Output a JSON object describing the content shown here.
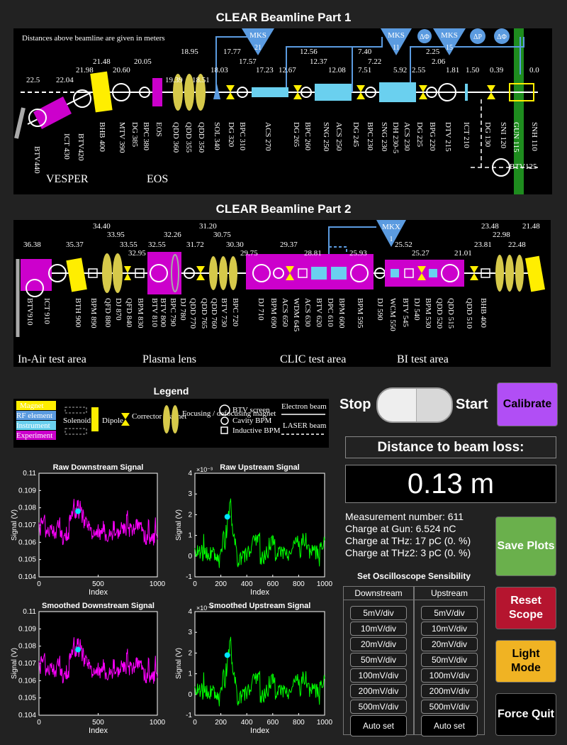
{
  "beamline1": {
    "title": "CLEAR Beamline Part 1",
    "note": "Distances above beamline are given in meters",
    "distances": [
      "22.5",
      "22.04",
      "21.98",
      "21.48",
      "20.60",
      "20.05",
      "19.39",
      "18.95",
      "18.51",
      "18.03",
      "17.77",
      "17.57",
      "17.23",
      "12.67",
      "12.56",
      "12.37",
      "12.08",
      "7.51",
      "7.40",
      "7.22",
      "5.92",
      "2.55",
      "2.25",
      "2.06",
      "1.81",
      "1.50",
      "0.39",
      "0.0"
    ],
    "mks_labels": [
      "MKS",
      "21",
      "MKS",
      "11",
      "MKS",
      "15"
    ],
    "phase_labels": [
      "ΔΦ",
      "ΔP",
      "ΔΦ"
    ],
    "elements": [
      "BTV440",
      "ICT 430",
      "BTV420",
      "BHB 400",
      "MTV 390",
      "DG 385",
      "BPC 380",
      "EOS",
      "QDD 360",
      "QDD 355",
      "QDD 350",
      "SOL 340",
      "DG 320",
      "BPC 310",
      "ACS 270",
      "DG 265",
      "BPC 260",
      "SNG 250",
      "ACS 250",
      "DG 245",
      "BPC 230",
      "SNG 230",
      "DH 230-5",
      "ACS 230",
      "DG 225",
      "BPG 220",
      "DTV 215",
      "ICT 210",
      "DG 130",
      "SNI 120",
      "GUN 115",
      "SNH 110",
      "BTV125"
    ],
    "areas": [
      "VESPER",
      "EOS"
    ]
  },
  "beamline2": {
    "title": "CLEAR Beamline Part 2",
    "distances": [
      "36.38",
      "35.37",
      "34.40",
      "33.95",
      "33.55",
      "32.95",
      "32.55",
      "32.26",
      "31.72",
      "31.20",
      "30.75",
      "30.30",
      "29.75",
      "29.37",
      "28.81",
      "25.93",
      "25.52",
      "25.27",
      "23.48",
      "22.98",
      "22.48",
      "21.48",
      "21.01",
      "23.81"
    ],
    "mks_labels": [
      "MKX",
      "1"
    ],
    "elements": [
      "BTV910",
      "ICT 910",
      "BTH 900",
      "BPM 890",
      "QFD 880",
      "DJ 870",
      "QFD 840",
      "BPM 830",
      "BTV 810",
      "BTV 800",
      "BPC 790",
      "DJ 780",
      "QDD 770",
      "QDD 765",
      "QDD 760",
      "BTV 730",
      "BPC 720",
      "DJ 710",
      "BPM 690",
      "ACS 650",
      "WDM 645",
      "ACS 630",
      "BTV 620",
      "DPC 610",
      "BPM 600",
      "BPM 595",
      "DJ 590",
      "WCM 550",
      "BTV 545",
      "DJ 540",
      "BPM 530",
      "QDD 520",
      "QDD 515",
      "QDD 510",
      "BHB 400"
    ],
    "areas": [
      "In-Air test area",
      "Plasma lens",
      "CLIC test area",
      "BI test area"
    ]
  },
  "legend": {
    "title": "Legend",
    "color_keys": [
      "Magnet",
      "RF element",
      "Instrument",
      "Experiment"
    ],
    "items": [
      "Solenoid",
      "Dipole",
      "Corrector magnet",
      "Focusing / defocusing magnet",
      "BTV screen",
      "Cavity BPM",
      "Inductive BPM",
      "Electron beam",
      "LASER beam"
    ]
  },
  "controls": {
    "stop_label": "Stop",
    "start_label": "Start",
    "toggle_state": "off",
    "calibrate_label": "Calibrate",
    "distance_title": "Distance to beam loss:",
    "distance_value": "0.13 m",
    "save_label": "Save Plots",
    "reset_label": "Reset Scope",
    "light_label": "Light Mode",
    "quit_label": "Force Quit"
  },
  "info": {
    "measurement": "Measurement number: 611",
    "charge_gun": "Charge at Gun: 6.524 nC",
    "charge_thz": "Charge at THz: 17 pC (0. %)",
    "charge_thz2": "Charge at THz2: 3 pC (0. %)"
  },
  "sensitivity": {
    "title": "Set Oscilloscope Sensibility",
    "downstream_label": "Downstream",
    "upstream_label": "Upstream",
    "options": [
      "5mV/div",
      "10mV/div",
      "20mV/div",
      "50mV/div",
      "100mV/div",
      "200mV/div",
      "500mV/div"
    ],
    "auto_label": "Auto set"
  },
  "chart_data": [
    {
      "type": "line",
      "title": "Raw Downstream Signal",
      "xlabel": "Index",
      "ylabel": "Signal (V)",
      "xlim": [
        0,
        1000
      ],
      "ylim": [
        0.104,
        0.11
      ],
      "xticks": [
        "0",
        "500",
        "1000"
      ],
      "yticks": [
        "0.104",
        "0.105",
        "0.106",
        "0.107",
        "0.108",
        "0.109",
        "0.11"
      ],
      "color": "#ff00ff",
      "marker": {
        "x": 330,
        "y": 0.1078
      },
      "series_profile": {
        "base": 0.1068,
        "spread": 0.0009,
        "peak_x": 330,
        "peak": 0.1093
      }
    },
    {
      "type": "line",
      "title": "Raw Upstream Signal",
      "xlabel": "Index",
      "ylabel": "Signal (V)",
      "exponent": "×10⁻³",
      "xlim": [
        0,
        1000
      ],
      "ylim": [
        -1,
        4
      ],
      "xticks": [
        "0",
        "200",
        "400",
        "600",
        "800",
        "1000"
      ],
      "yticks": [
        "-1",
        "0",
        "1",
        "2",
        "3",
        "4"
      ],
      "color": "#00ff00",
      "marker": {
        "x": 250,
        "y": 1.9
      },
      "series_profile": {
        "base": 0.2,
        "spread": 0.8,
        "peak_x": 270,
        "peak": 3.2
      }
    },
    {
      "type": "line",
      "title": "Smoothed Downstream Signal",
      "xlabel": "Index",
      "ylabel": "Signal (V)",
      "xlim": [
        0,
        1000
      ],
      "ylim": [
        0.104,
        0.11
      ],
      "xticks": [
        "0",
        "500",
        "1000"
      ],
      "yticks": [
        "0.104",
        "0.105",
        "0.106",
        "0.107",
        "0.108",
        "0.109",
        "0.11"
      ],
      "color": "#ff00ff",
      "marker": {
        "x": 330,
        "y": 0.1078
      },
      "series_profile": {
        "base": 0.1068,
        "spread": 0.0009,
        "peak_x": 330,
        "peak": 0.1093
      }
    },
    {
      "type": "line",
      "title": "Smoothed Upstream Signal",
      "xlabel": "Index",
      "ylabel": "Signal (V)",
      "exponent": "×10⁻³",
      "xlim": [
        0,
        1000
      ],
      "ylim": [
        -1,
        4
      ],
      "xticks": [
        "0",
        "200",
        "400",
        "600",
        "800",
        "1000"
      ],
      "yticks": [
        "-1",
        "0",
        "1",
        "2",
        "3",
        "4"
      ],
      "color": "#00ff00",
      "marker": {
        "x": 250,
        "y": 1.9
      },
      "series_profile": {
        "base": 0.2,
        "spread": 0.8,
        "peak_x": 270,
        "peak": 3.2
      }
    }
  ]
}
